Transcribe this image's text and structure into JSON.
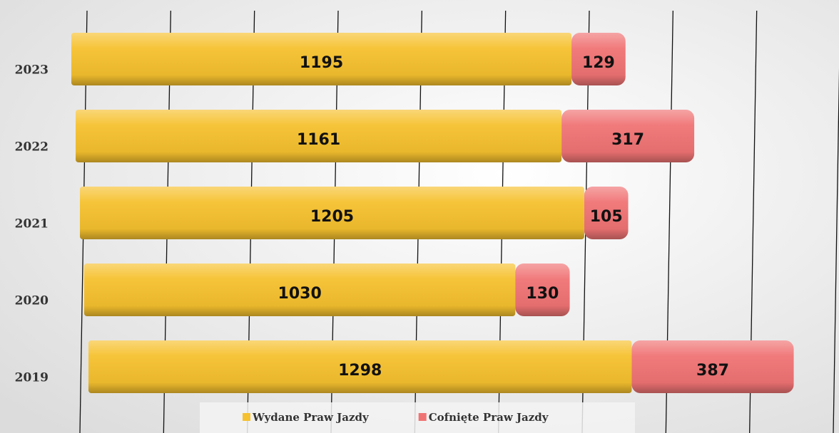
{
  "chart_data": {
    "type": "bar",
    "orientation": "horizontal",
    "stacked": true,
    "categories": [
      "2023",
      "2022",
      "2021",
      "2020",
      "2019"
    ],
    "series": [
      {
        "name": "Wydane Praw Jazdy",
        "color": "#f6c12e",
        "values": [
          1195,
          1161,
          1205,
          1030,
          1298
        ]
      },
      {
        "name": "Cofnięte Praw Jazdy",
        "color": "#f07374",
        "values": [
          129,
          317,
          105,
          130,
          387
        ]
      }
    ],
    "xlim": [
      0,
      1800
    ],
    "xticks": [
      0,
      200,
      400,
      600,
      800,
      1000,
      1200,
      1400,
      1600,
      1800
    ],
    "grid": true,
    "legend": "bottom"
  }
}
